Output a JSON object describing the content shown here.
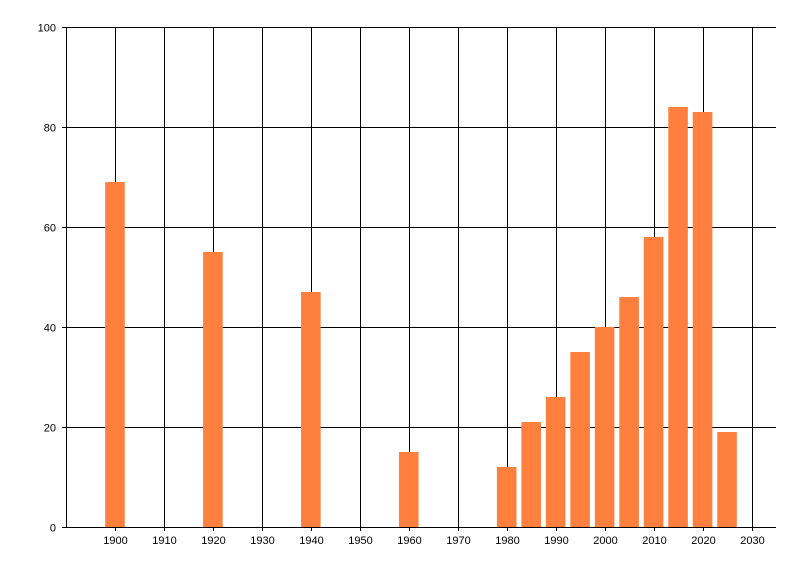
{
  "chart_data": {
    "type": "bar",
    "x": [
      1900,
      1920,
      1940,
      1960,
      1980,
      1985,
      1990,
      1995,
      2000,
      2005,
      2010,
      2015,
      2020,
      2025
    ],
    "values": [
      69,
      55,
      47,
      15,
      12,
      21,
      26,
      35,
      40,
      46,
      58,
      84,
      83,
      19
    ],
    "xlim": [
      1890,
      2035
    ],
    "ylim": [
      0,
      100
    ],
    "x_ticks": [
      1900,
      1910,
      1920,
      1930,
      1940,
      1950,
      1960,
      1970,
      1980,
      1990,
      2000,
      2010,
      2020,
      2030
    ],
    "y_ticks": [
      0,
      20,
      40,
      60,
      80,
      100
    ],
    "bar_width_years": 4,
    "grid": true,
    "legend": "none",
    "bar_color": "#FF7F3F",
    "title": "",
    "xlabel": "",
    "ylabel": ""
  }
}
